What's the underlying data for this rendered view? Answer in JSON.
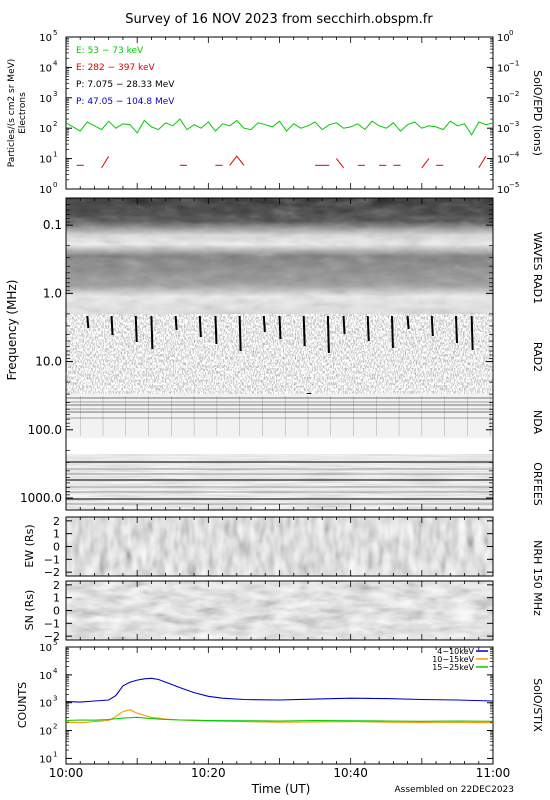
{
  "page": {
    "title": "Survey of 16 NOV 2023 from secchirh.obspm.fr",
    "assembled": "Assembled on 22DEC2023",
    "xlabel": "Time (UT)",
    "xticks": [
      "10:00",
      "10:20",
      "10:40",
      "11:00"
    ]
  },
  "panels": {
    "epd": {
      "ylabel_line1": "Particles/(s cm2 sr MeV)",
      "ylabel_line2": "Electrons",
      "side_label": "SolO/EPD (ions)",
      "left_ticks": [
        {
          "base": "10",
          "exp": "5"
        },
        {
          "base": "10",
          "exp": "4"
        },
        {
          "base": "10",
          "exp": "3"
        },
        {
          "base": "10",
          "exp": "2"
        },
        {
          "base": "10",
          "exp": "1"
        },
        {
          "base": "10",
          "exp": "0"
        }
      ],
      "right_ticks": [
        {
          "base": "10",
          "exp": "0"
        },
        {
          "base": "10",
          "exp": "−1"
        },
        {
          "base": "10",
          "exp": "−2"
        },
        {
          "base": "10",
          "exp": "−3"
        },
        {
          "base": "10",
          "exp": "−4"
        },
        {
          "base": "10",
          "exp": "−5"
        }
      ],
      "legend": [
        {
          "label": "E: 53 − 73 keV",
          "color": "#00cc00"
        },
        {
          "label": "E: 282 − 397 keV",
          "color": "#dd0000"
        },
        {
          "label": "P: 7.075 − 28.33 MeV",
          "color": "#000000"
        },
        {
          "label": "P: 47.05 − 104.8 MeV",
          "color": "#0000cc"
        }
      ]
    },
    "radio": {
      "ylabel": "Frequency (MHz)",
      "ticks": [
        "0.1",
        "1.0",
        "10.0",
        "100.0",
        "1000.0"
      ],
      "labels": {
        "rad1": "WAVES RAD1",
        "rad2": "RAD2",
        "nda": "NDA",
        "orfees": "ORFEES"
      }
    },
    "nrh": {
      "side_label": "NRH 150 MHz",
      "ew_label": "EW (Rs)",
      "sn_label": "SN (Rs)",
      "ticks": [
        "2",
        "1",
        "0",
        "−1",
        "−2"
      ]
    },
    "stix": {
      "ylabel": "COUNTS",
      "side_label": "SolO/STIX",
      "ticks": [
        {
          "base": "10",
          "exp": "5"
        },
        {
          "base": "10",
          "exp": "4"
        },
        {
          "base": "10",
          "exp": "3"
        },
        {
          "base": "10",
          "exp": "2"
        },
        {
          "base": "10",
          "exp": "1"
        }
      ]
    }
  },
  "chart_data": [
    {
      "type": "line",
      "name": "SolO/EPD",
      "x_range": [
        "10:00",
        "11:00"
      ],
      "ylim": [
        1,
        100000
      ],
      "yscale": "log",
      "series": [
        {
          "name": "E: 53 − 73 keV",
          "color": "#00cc00",
          "x": [
            0,
            1,
            2,
            3,
            4,
            5,
            6,
            7,
            8,
            9,
            10,
            11,
            12,
            13,
            14,
            15,
            16,
            17,
            18,
            19,
            20,
            21,
            22,
            23,
            24,
            25,
            26,
            27,
            28,
            29,
            30,
            31,
            32,
            33,
            34,
            35,
            36,
            37,
            38,
            39,
            40,
            41,
            42,
            43,
            44,
            45,
            46,
            47,
            48,
            49,
            50,
            51,
            52,
            53,
            54,
            55,
            56,
            57,
            58,
            59,
            60
          ],
          "values": [
            150,
            110,
            80,
            160,
            120,
            90,
            170,
            100,
            140,
            130,
            70,
            180,
            110,
            90,
            150,
            120,
            200,
            90,
            130,
            100,
            160,
            80,
            140,
            120,
            180,
            100,
            90,
            150,
            130,
            110,
            170,
            80,
            140,
            100,
            120,
            160,
            90,
            130,
            150,
            100,
            110,
            140,
            90,
            170,
            120,
            100,
            150,
            80,
            130,
            160,
            100,
            120,
            110,
            90,
            170,
            120,
            140,
            60,
            160,
            130,
            150
          ]
        },
        {
          "name": "E: 282 − 397 keV",
          "color": "#dd0000",
          "segments": [
            [
              [
                1.5,
                6
              ],
              [
                2.5,
                6
              ]
            ],
            [
              [
                5,
                5
              ],
              [
                6,
                12
              ]
            ],
            [
              [
                16,
                6
              ],
              [
                17,
                6
              ]
            ],
            [
              [
                21,
                6
              ],
              [
                22,
                6
              ]
            ],
            [
              [
                23,
                6
              ],
              [
                24,
                12
              ],
              [
                25,
                6
              ]
            ],
            [
              [
                35,
                6
              ],
              [
                37,
                6
              ]
            ],
            [
              [
                38,
                10
              ],
              [
                39,
                5
              ]
            ],
            [
              [
                41,
                6
              ],
              [
                42,
                6
              ]
            ],
            [
              [
                44,
                6
              ],
              [
                45,
                6
              ]
            ],
            [
              [
                46,
                6
              ],
              [
                47,
                6
              ]
            ],
            [
              [
                50,
                5
              ],
              [
                51,
                10
              ]
            ],
            [
              [
                52,
                6
              ],
              [
                53,
                6
              ]
            ],
            [
              [
                58,
                5
              ],
              [
                59,
                12
              ]
            ]
          ]
        },
        {
          "name": "P: 7.075 − 28.33 MeV",
          "color": "#000000",
          "x": [],
          "values": []
        },
        {
          "name": "P: 47.05 − 104.8 MeV",
          "color": "#0000cc",
          "x": [],
          "values": []
        }
      ]
    },
    {
      "type": "line",
      "name": "SolO/STIX",
      "xlabel": "Time (UT)",
      "ylabel": "COUNTS",
      "yscale": "log",
      "ylim": [
        10,
        100000
      ],
      "x_range": [
        "10:00",
        "11:00"
      ],
      "series": [
        {
          "name": "4−10keV",
          "color": "#0000cc",
          "x": [
            0,
            2,
            4,
            6,
            7,
            8,
            9,
            10,
            11,
            12,
            13,
            14,
            16,
            18,
            20,
            22,
            25,
            30,
            35,
            40,
            45,
            50,
            55,
            60
          ],
          "values": [
            1100,
            1050,
            1150,
            1250,
            1800,
            4000,
            5500,
            6500,
            7200,
            7500,
            6800,
            5500,
            3500,
            2300,
            1700,
            1450,
            1300,
            1250,
            1350,
            1450,
            1400,
            1300,
            1250,
            1150
          ]
        },
        {
          "name": "10−15keV",
          "color": "#ff9900",
          "x": [
            0,
            2,
            4,
            6,
            7,
            8,
            9,
            10,
            11,
            12,
            14,
            16,
            18,
            20,
            25,
            30,
            35,
            40,
            45,
            50,
            55,
            60
          ],
          "values": [
            200,
            190,
            210,
            230,
            320,
            480,
            560,
            420,
            350,
            300,
            260,
            240,
            230,
            220,
            210,
            200,
            205,
            210,
            200,
            195,
            200,
            190
          ]
        },
        {
          "name": "15−25keV",
          "color": "#00cc00",
          "x": [
            0,
            2,
            4,
            6,
            8,
            10,
            12,
            14,
            16,
            18,
            20,
            25,
            30,
            35,
            40,
            45,
            50,
            55,
            60
          ],
          "values": [
            230,
            240,
            235,
            250,
            280,
            300,
            270,
            250,
            240,
            235,
            230,
            225,
            220,
            230,
            225,
            220,
            215,
            220,
            215
          ]
        }
      ]
    }
  ]
}
